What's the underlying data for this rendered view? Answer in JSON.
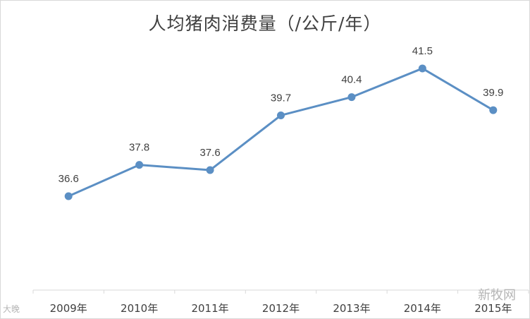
{
  "chart_data": {
    "type": "line",
    "title": "人均猪肉消费量（/公斤/年）",
    "categories": [
      "2009年",
      "2010年",
      "2011年",
      "2012年",
      "2013年",
      "2014年",
      "2015年"
    ],
    "series": [
      {
        "values": [
          36.6,
          37.8,
          37.6,
          39.7,
          40.4,
          41.5,
          39.9
        ]
      }
    ],
    "data_labels": [
      "36.6",
      "37.8",
      "37.6",
      "39.7",
      "40.4",
      "41.5",
      "39.9"
    ],
    "ylim": [
      33,
      42.5
    ],
    "grid": false,
    "legend": "none",
    "line_color": "#5b8fc4"
  },
  "watermarks": {
    "right": "新牧网",
    "left": "大晚"
  }
}
